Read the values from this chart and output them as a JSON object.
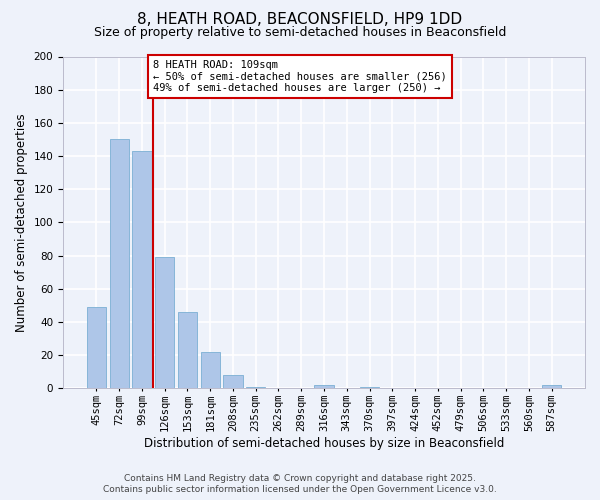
{
  "title": "8, HEATH ROAD, BEACONSFIELD, HP9 1DD",
  "subtitle": "Size of property relative to semi-detached houses in Beaconsfield",
  "xlabel": "Distribution of semi-detached houses by size in Beaconsfield",
  "ylabel": "Number of semi-detached properties",
  "categories": [
    "45sqm",
    "72sqm",
    "99sqm",
    "126sqm",
    "153sqm",
    "181sqm",
    "208sqm",
    "235sqm",
    "262sqm",
    "289sqm",
    "316sqm",
    "343sqm",
    "370sqm",
    "397sqm",
    "424sqm",
    "452sqm",
    "479sqm",
    "506sqm",
    "533sqm",
    "560sqm",
    "587sqm"
  ],
  "values": [
    49,
    150,
    143,
    79,
    46,
    22,
    8,
    1,
    0,
    0,
    2,
    0,
    1,
    0,
    0,
    0,
    0,
    0,
    0,
    0,
    2
  ],
  "bar_color": "#aec6e8",
  "bar_edge_color": "#7bafd4",
  "vline_color": "#cc0000",
  "ylim": [
    0,
    200
  ],
  "yticks": [
    0,
    20,
    40,
    60,
    80,
    100,
    120,
    140,
    160,
    180,
    200
  ],
  "annotation_title": "8 HEATH ROAD: 109sqm",
  "annotation_line1": "← 50% of semi-detached houses are smaller (256)",
  "annotation_line2": "49% of semi-detached houses are larger (250) →",
  "annotation_box_color": "#cc0000",
  "footer_line1": "Contains HM Land Registry data © Crown copyright and database right 2025.",
  "footer_line2": "Contains public sector information licensed under the Open Government Licence v3.0.",
  "bg_color": "#eef2fa",
  "grid_color": "#ffffff",
  "title_fontsize": 11,
  "subtitle_fontsize": 9,
  "axis_label_fontsize": 8.5,
  "tick_fontsize": 7.5,
  "footer_fontsize": 6.5,
  "annotation_fontsize": 7.5
}
